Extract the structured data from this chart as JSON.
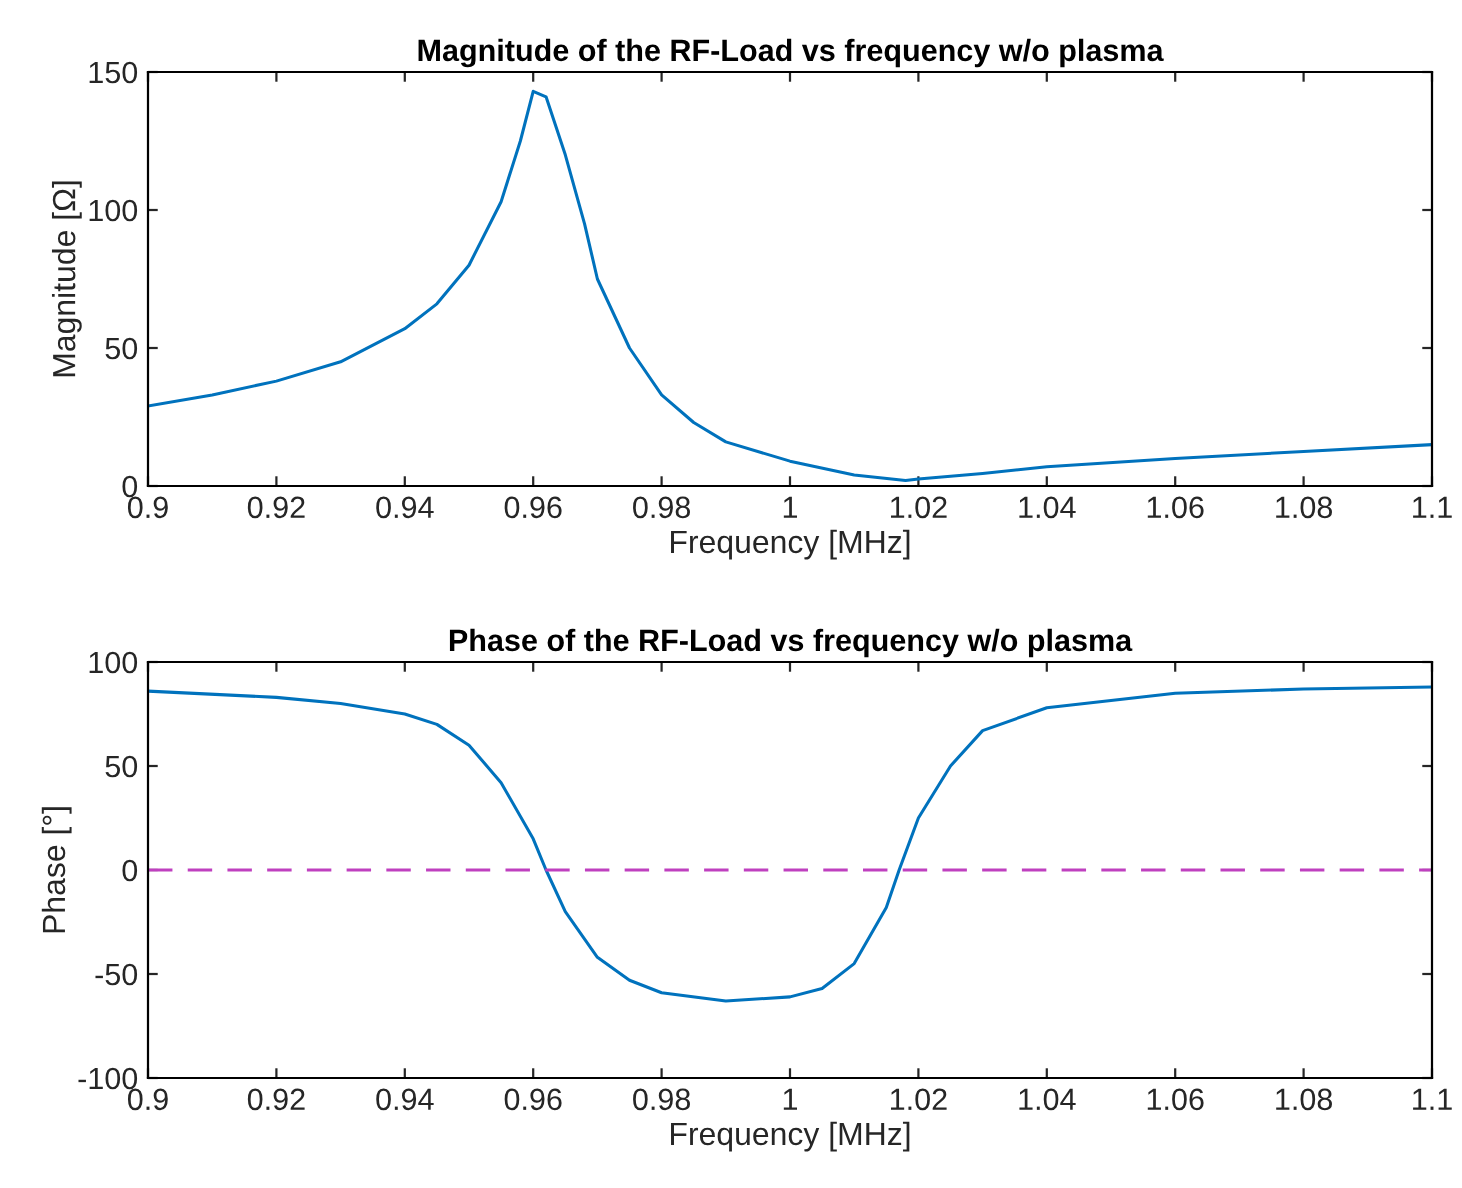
{
  "chart_data": [
    {
      "type": "line",
      "title": "Magnitude of the RF-Load vs frequency w/o plasma",
      "xlabel": "Frequency [MHz]",
      "ylabel": "Magnitude [Ω]",
      "x": [
        0.9,
        0.91,
        0.92,
        0.93,
        0.94,
        0.945,
        0.95,
        0.955,
        0.958,
        0.96,
        0.962,
        0.965,
        0.968,
        0.97,
        0.975,
        0.98,
        0.985,
        0.99,
        1.0,
        1.01,
        1.018,
        1.02,
        1.03,
        1.04,
        1.06,
        1.08,
        1.1
      ],
      "series": [
        {
          "color": "#0072bd",
          "values": [
            29,
            33,
            38,
            45,
            57,
            66,
            80,
            103,
            125,
            143,
            141,
            120,
            95,
            75,
            50,
            33,
            23,
            16,
            9,
            4,
            2,
            2.5,
            4.5,
            7,
            10,
            12.5,
            15
          ]
        }
      ],
      "xlim": [
        0.9,
        1.1
      ],
      "xticks": [
        0.9,
        0.92,
        0.94,
        0.96,
        0.98,
        1,
        1.02,
        1.04,
        1.06,
        1.08,
        1.1
      ],
      "ylim": [
        0,
        150
      ],
      "yticks": [
        0,
        50,
        100,
        150
      ],
      "grid": false,
      "legend": false,
      "line_style": "solid",
      "marker": "none"
    },
    {
      "type": "line",
      "title": "Phase of the RF-Load vs frequency w/o plasma",
      "xlabel": "Frequency [MHz]",
      "ylabel": "Phase [°]",
      "x": [
        0.9,
        0.92,
        0.93,
        0.94,
        0.945,
        0.95,
        0.955,
        0.96,
        0.962,
        0.965,
        0.97,
        0.975,
        0.98,
        0.99,
        1.0,
        1.005,
        1.01,
        1.015,
        1.017,
        1.02,
        1.025,
        1.03,
        1.04,
        1.06,
        1.08,
        1.1
      ],
      "series": [
        {
          "color": "#0072bd",
          "values": [
            86,
            83,
            80,
            75,
            70,
            60,
            42,
            15,
            0,
            -20,
            -42,
            -53,
            -59,
            -63,
            -61,
            -57,
            -45,
            -18,
            0,
            25,
            50,
            67,
            78,
            85,
            87,
            88
          ]
        }
      ],
      "ref_lines": [
        {
          "axis": "y",
          "value": 0,
          "color": "#bf40bf",
          "line_style": "dashed"
        }
      ],
      "xlim": [
        0.9,
        1.1
      ],
      "xticks": [
        0.9,
        0.92,
        0.94,
        0.96,
        0.98,
        1,
        1.02,
        1.04,
        1.06,
        1.08,
        1.1
      ],
      "ylim": [
        -100,
        100
      ],
      "yticks": [
        -100,
        -50,
        0,
        50,
        100
      ],
      "grid": false,
      "legend": false,
      "line_style": "solid",
      "marker": "none"
    }
  ]
}
